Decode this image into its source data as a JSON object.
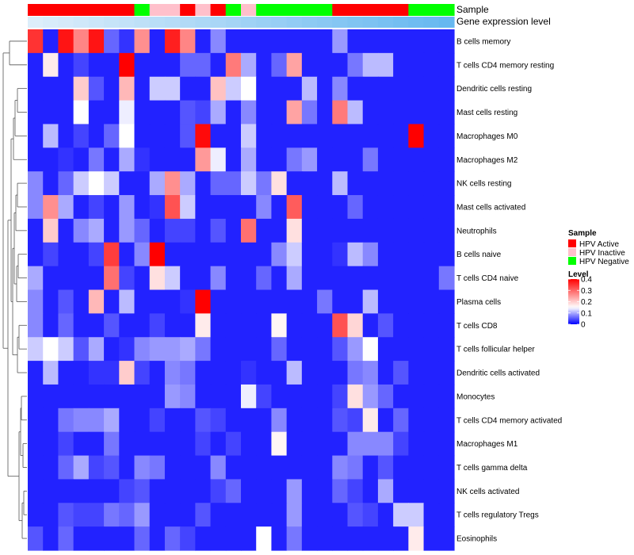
{
  "chart_data": {
    "type": "heatmap",
    "title": "",
    "annotation_tracks": [
      "Sample",
      "Gene expression level"
    ],
    "sample_annotation": [
      "HPV Active",
      "HPV Active",
      "HPV Active",
      "HPV Active",
      "HPV Active",
      "HPV Active",
      "HPV Active",
      "HPV Negative",
      "HPV Inactive",
      "HPV Inactive",
      "HPV Active",
      "HPV Inactive",
      "HPV Active",
      "HPV Negative",
      "HPV Inactive",
      "HPV Negative",
      "HPV Negative",
      "HPV Negative",
      "HPV Negative",
      "HPV Negative",
      "HPV Active",
      "HPV Active",
      "HPV Active",
      "HPV Active",
      "HPV Active",
      "HPV Negative",
      "HPV Negative",
      "HPV Negative"
    ],
    "expression_annotation": [
      0.0,
      0.04,
      0.07,
      0.11,
      0.15,
      0.19,
      0.22,
      0.26,
      0.3,
      0.33,
      0.37,
      0.41,
      0.44,
      0.48,
      0.52,
      0.56,
      0.59,
      0.63,
      0.67,
      0.7,
      0.74,
      0.78,
      0.81,
      0.85,
      0.89,
      0.93,
      0.96,
      1.0
    ],
    "rows": [
      "B cells memory",
      "T cells CD4 memory resting",
      "Dendritic cells resting",
      "Mast cells resting",
      "Macrophages M0",
      "Macrophages M2",
      "NK cells resting",
      "Mast cells activated",
      "Neutrophils",
      "B cells naive",
      "T cells CD4 naive",
      "Plasma cells",
      "T cells CD8",
      "T cells follicular helper",
      "Dendritic cells activated",
      "Monocytes",
      "T cells CD4 memory activated",
      "Macrophages M1",
      "T cells gamma delta",
      "NK cells activated",
      "T cells regulatory  Tregs",
      "Eosinophils"
    ],
    "values": [
      [
        0.35,
        0.02,
        0.38,
        0.27,
        0.38,
        0.06,
        0.03,
        0.26,
        0.02,
        0.37,
        0.27,
        0.02,
        0.08,
        0.02,
        0.02,
        0.02,
        0.02,
        0.02,
        0.02,
        0.02,
        0.09,
        0.02,
        0.02,
        0.02,
        0.02,
        0.02,
        0.02,
        0.02
      ],
      [
        0.02,
        0.17,
        0.02,
        0.04,
        0.02,
        0.02,
        0.42,
        0.02,
        0.02,
        0.02,
        0.06,
        0.06,
        0.02,
        0.28,
        0.1,
        0.02,
        0.06,
        0.24,
        0.02,
        0.02,
        0.02,
        0.07,
        0.11,
        0.11,
        0.02,
        0.02,
        0.02,
        0.02
      ],
      [
        0.02,
        0.02,
        0.02,
        0.2,
        0.05,
        0.02,
        0.22,
        0.02,
        0.12,
        0.12,
        0.02,
        0.02,
        0.21,
        0.12,
        0.15,
        0.02,
        0.02,
        0.02,
        0.11,
        0.02,
        0.08,
        0.02,
        0.02,
        0.02,
        0.02,
        0.02,
        0.02,
        0.02
      ],
      [
        0.02,
        0.02,
        0.02,
        0.15,
        0.02,
        0.02,
        0.14,
        0.02,
        0.02,
        0.02,
        0.05,
        0.04,
        0.1,
        0.02,
        0.08,
        0.02,
        0.02,
        0.24,
        0.07,
        0.02,
        0.28,
        0.11,
        0.02,
        0.02,
        0.02,
        0.02,
        0.02,
        0.02
      ],
      [
        0.02,
        0.11,
        0.02,
        0.04,
        0.02,
        0.06,
        0.15,
        0.02,
        0.02,
        0.02,
        0.05,
        0.39,
        0.02,
        0.02,
        0.12,
        0.02,
        0.02,
        0.02,
        0.02,
        0.02,
        0.02,
        0.02,
        0.02,
        0.02,
        0.02,
        0.42,
        0.02,
        0.02
      ],
      [
        0.02,
        0.02,
        0.03,
        0.02,
        0.07,
        0.02,
        0.1,
        0.03,
        0.02,
        0.02,
        0.02,
        0.25,
        0.14,
        0.02,
        0.1,
        0.02,
        0.02,
        0.07,
        0.09,
        0.02,
        0.02,
        0.02,
        0.07,
        0.02,
        0.02,
        0.02,
        0.02,
        0.02
      ],
      [
        0.08,
        0.02,
        0.06,
        0.12,
        0.15,
        0.12,
        0.02,
        0.02,
        0.1,
        0.26,
        0.1,
        0.02,
        0.06,
        0.06,
        0.12,
        0.07,
        0.18,
        0.02,
        0.02,
        0.02,
        0.11,
        0.02,
        0.02,
        0.02,
        0.02,
        0.02,
        0.02,
        0.02
      ],
      [
        0.08,
        0.26,
        0.1,
        0.02,
        0.04,
        0.02,
        0.09,
        0.02,
        0.03,
        0.32,
        0.12,
        0.02,
        0.02,
        0.02,
        0.02,
        0.08,
        0.02,
        0.31,
        0.02,
        0.02,
        0.02,
        0.06,
        0.02,
        0.02,
        0.02,
        0.02,
        0.02,
        0.02
      ],
      [
        0.02,
        0.2,
        0.02,
        0.08,
        0.1,
        0.02,
        0.09,
        0.06,
        0.02,
        0.04,
        0.04,
        0.02,
        0.05,
        0.02,
        0.29,
        0.02,
        0.02,
        0.18,
        0.02,
        0.02,
        0.02,
        0.02,
        0.02,
        0.02,
        0.02,
        0.02,
        0.02,
        0.02
      ],
      [
        0.02,
        0.04,
        0.02,
        0.02,
        0.04,
        0.34,
        0.02,
        0.08,
        0.42,
        0.02,
        0.02,
        0.02,
        0.02,
        0.02,
        0.02,
        0.02,
        0.08,
        0.12,
        0.02,
        0.02,
        0.03,
        0.11,
        0.08,
        0.02,
        0.02,
        0.02,
        0.02,
        0.02
      ],
      [
        0.1,
        0.02,
        0.02,
        0.02,
        0.02,
        0.29,
        0.04,
        0.02,
        0.18,
        0.12,
        0.02,
        0.02,
        0.08,
        0.02,
        0.02,
        0.06,
        0.02,
        0.1,
        0.02,
        0.02,
        0.02,
        0.02,
        0.02,
        0.02,
        0.02,
        0.02,
        0.02,
        0.07
      ],
      [
        0.08,
        0.02,
        0.05,
        0.02,
        0.22,
        0.02,
        0.11,
        0.02,
        0.02,
        0.02,
        0.03,
        0.4,
        0.02,
        0.02,
        0.02,
        0.02,
        0.02,
        0.02,
        0.02,
        0.07,
        0.02,
        0.02,
        0.11,
        0.02,
        0.02,
        0.02,
        0.02,
        0.02
      ],
      [
        0.08,
        0.02,
        0.06,
        0.02,
        0.02,
        0.05,
        0.02,
        0.02,
        0.04,
        0.02,
        0.02,
        0.17,
        0.02,
        0.02,
        0.02,
        0.02,
        0.16,
        0.02,
        0.02,
        0.02,
        0.32,
        0.19,
        0.02,
        0.05,
        0.02,
        0.02,
        0.02,
        0.02
      ],
      [
        0.12,
        0.15,
        0.12,
        0.05,
        0.1,
        0.02,
        0.03,
        0.08,
        0.09,
        0.09,
        0.1,
        0.07,
        0.02,
        0.02,
        0.02,
        0.02,
        0.06,
        0.02,
        0.02,
        0.02,
        0.05,
        0.09,
        0.15,
        0.02,
        0.02,
        0.02,
        0.02,
        0.02
      ],
      [
        0.02,
        0.11,
        0.02,
        0.02,
        0.03,
        0.03,
        0.2,
        0.04,
        0.02,
        0.08,
        0.07,
        0.02,
        0.02,
        0.02,
        0.03,
        0.02,
        0.02,
        0.11,
        0.02,
        0.02,
        0.02,
        0.07,
        0.08,
        0.02,
        0.05,
        0.02,
        0.02,
        0.02
      ],
      [
        0.02,
        0.02,
        0.02,
        0.02,
        0.02,
        0.02,
        0.02,
        0.02,
        0.02,
        0.09,
        0.08,
        0.02,
        0.02,
        0.02,
        0.14,
        0.04,
        0.02,
        0.02,
        0.02,
        0.02,
        0.04,
        0.18,
        0.09,
        0.06,
        0.02,
        0.02,
        0.02,
        0.02
      ],
      [
        0.02,
        0.02,
        0.07,
        0.08,
        0.08,
        0.1,
        0.02,
        0.02,
        0.04,
        0.02,
        0.02,
        0.05,
        0.04,
        0.02,
        0.02,
        0.02,
        0.08,
        0.02,
        0.02,
        0.02,
        0.05,
        0.04,
        0.17,
        0.02,
        0.06,
        0.02,
        0.02,
        0.02
      ],
      [
        0.02,
        0.02,
        0.04,
        0.02,
        0.02,
        0.07,
        0.02,
        0.02,
        0.02,
        0.02,
        0.02,
        0.04,
        0.02,
        0.04,
        0.02,
        0.02,
        0.16,
        0.02,
        0.02,
        0.02,
        0.02,
        0.08,
        0.08,
        0.08,
        0.04,
        0.02,
        0.02,
        0.02
      ],
      [
        0.02,
        0.02,
        0.06,
        0.1,
        0.04,
        0.05,
        0.02,
        0.08,
        0.07,
        0.02,
        0.02,
        0.02,
        0.08,
        0.02,
        0.02,
        0.02,
        0.02,
        0.02,
        0.02,
        0.02,
        0.08,
        0.07,
        0.02,
        0.05,
        0.02,
        0.02,
        0.02,
        0.02
      ],
      [
        0.02,
        0.02,
        0.02,
        0.02,
        0.02,
        0.02,
        0.04,
        0.05,
        0.02,
        0.02,
        0.02,
        0.02,
        0.04,
        0.06,
        0.02,
        0.02,
        0.02,
        0.09,
        0.02,
        0.02,
        0.06,
        0.04,
        0.02,
        0.1,
        0.02,
        0.02,
        0.02,
        0.02
      ],
      [
        0.02,
        0.02,
        0.05,
        0.04,
        0.04,
        0.07,
        0.06,
        0.09,
        0.02,
        0.02,
        0.02,
        0.05,
        0.02,
        0.02,
        0.02,
        0.02,
        0.02,
        0.09,
        0.02,
        0.02,
        0.02,
        0.05,
        0.04,
        0.02,
        0.12,
        0.12,
        0.02,
        0.02
      ],
      [
        0.05,
        0.02,
        0.06,
        0.02,
        0.02,
        0.02,
        0.02,
        0.06,
        0.02,
        0.06,
        0.04,
        0.02,
        0.02,
        0.02,
        0.02,
        0.15,
        0.02,
        0.07,
        0.02,
        0.02,
        0.02,
        0.02,
        0.02,
        0.02,
        0.02,
        0.17,
        0.02,
        0.02
      ]
    ],
    "color_scale": {
      "low_color": "#0000ff",
      "mid_color": "#ffffff",
      "high_color": "#ff0000",
      "range": [
        0,
        0.4
      ],
      "mid": 0.15
    },
    "legend": {
      "sample_title": "Sample",
      "sample_entries": [
        {
          "label": "HPV Active",
          "color": "#ff0000"
        },
        {
          "label": "HPV Inactive",
          "color": "#ffc0cb"
        },
        {
          "label": "HPV Negative",
          "color": "#00ff00"
        }
      ],
      "level_title": "Level",
      "level_ticks": [
        0.4,
        0.3,
        0.2,
        0.1,
        0
      ],
      "position": "right"
    },
    "row_dendrogram": "left",
    "expression_colors": [
      "#ddeefa",
      "#66b8f0"
    ]
  }
}
